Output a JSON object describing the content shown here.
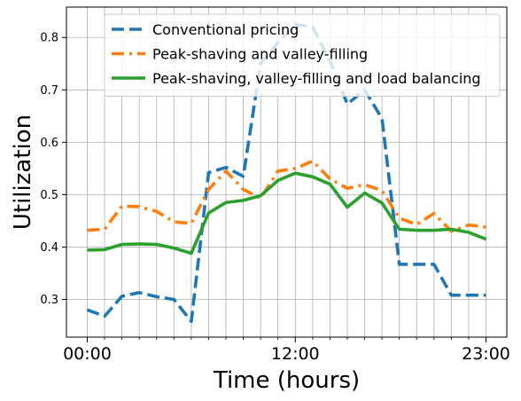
{
  "chart_data": {
    "type": "line",
    "title": "",
    "xlabel": "Time (hours)",
    "ylabel": "Utilization",
    "xlim": [
      -1.2,
      24.2
    ],
    "ylim": [
      0.228,
      0.858
    ],
    "x": [
      0,
      1,
      2,
      3,
      4,
      5,
      6,
      7,
      8,
      9,
      10,
      11,
      12,
      13,
      14,
      15,
      16,
      17,
      18,
      19,
      20,
      21,
      22,
      23
    ],
    "x_ticks": [
      {
        "value": 0,
        "label": "00:00"
      },
      {
        "value": 12,
        "label": "12:00"
      },
      {
        "value": 23,
        "label": "23:00"
      }
    ],
    "x_minor_ticks": [
      1,
      2,
      3,
      4,
      5,
      6,
      7,
      8,
      9,
      10,
      11,
      13,
      14,
      15,
      16,
      17,
      18,
      19,
      20,
      21,
      22
    ],
    "y_ticks": [
      {
        "value": 0.3,
        "label": "0.3"
      },
      {
        "value": 0.4,
        "label": "0.4"
      },
      {
        "value": 0.5,
        "label": "0.5"
      },
      {
        "value": 0.6,
        "label": "0.6"
      },
      {
        "value": 0.7,
        "label": "0.7"
      },
      {
        "value": 0.8,
        "label": "0.8"
      }
    ],
    "grid": true,
    "legend_position": "top-right",
    "series": [
      {
        "name": "Conventional pricing",
        "color": "#1f77b4",
        "dash": "dashed",
        "values": [
          0.28,
          0.268,
          0.306,
          0.313,
          0.305,
          0.3,
          0.258,
          0.542,
          0.552,
          0.535,
          0.75,
          0.79,
          0.825,
          0.82,
          0.755,
          0.673,
          0.7,
          0.645,
          0.367,
          0.367,
          0.367,
          0.308,
          0.308,
          0.308
        ]
      },
      {
        "name": "Peak-shaving and valley-filling",
        "color": "#ff7f0e",
        "dash": "dashdot",
        "values": [
          0.432,
          0.434,
          0.478,
          0.477,
          0.468,
          0.448,
          0.445,
          0.51,
          0.545,
          0.51,
          0.493,
          0.545,
          0.55,
          0.564,
          0.53,
          0.512,
          0.519,
          0.508,
          0.455,
          0.443,
          0.464,
          0.43,
          0.442,
          0.438
        ]
      },
      {
        "name": "Peak-shaving, valley-filling and load balancing",
        "color": "#2ca02c",
        "dash": "solid",
        "values": [
          0.394,
          0.395,
          0.405,
          0.406,
          0.405,
          0.398,
          0.388,
          0.465,
          0.485,
          0.489,
          0.498,
          0.527,
          0.541,
          0.534,
          0.52,
          0.476,
          0.503,
          0.484,
          0.434,
          0.432,
          0.432,
          0.434,
          0.428,
          0.415
        ]
      }
    ]
  }
}
